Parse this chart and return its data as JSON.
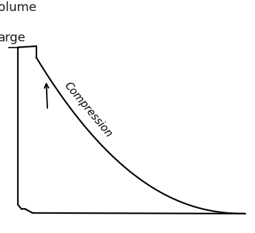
{
  "title": "",
  "ylabel_text": "olume",
  "ylabel2_text": "arge",
  "compression_label": "Compression",
  "line_color": "#000000",
  "bg_color": "#ffffff",
  "label_fontsize": 13,
  "compression_fontsize": 11
}
